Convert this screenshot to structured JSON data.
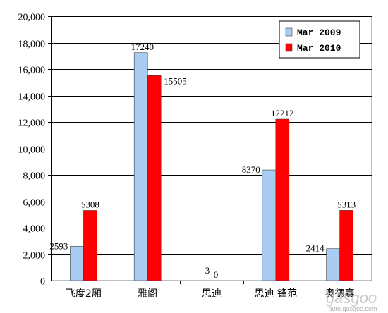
{
  "chart_data": {
    "type": "bar",
    "categories": [
      "飞度2厢",
      "雅阁",
      "思迪",
      "思迪 锋范",
      "奥德赛"
    ],
    "series": [
      {
        "name": "Mar 2009",
        "color": "#a9cdf2",
        "values": [
          2593,
          17240,
          3,
          8370,
          2414
        ]
      },
      {
        "name": "Mar 2010",
        "color": "#ff0000",
        "values": [
          5308,
          15505,
          0,
          12212,
          5313
        ]
      }
    ],
    "data_labels": {
      "Mar 2009": [
        "2593",
        "17240",
        "3",
        "8370",
        "2414"
      ],
      "Mar 2010": [
        "5308",
        "15505",
        "0",
        "12212",
        "5313"
      ]
    },
    "ylim": [
      0,
      20000
    ],
    "yticks": [
      0,
      2000,
      4000,
      6000,
      8000,
      10000,
      12000,
      14000,
      16000,
      18000,
      20000
    ],
    "ytick_labels": [
      "0",
      "2,000",
      "4,000",
      "6,000",
      "8,000",
      "10,000",
      "12,000",
      "14,000",
      "16,000",
      "18,000",
      "20,000"
    ],
    "grid": true,
    "legend_position": "top-right",
    "title": "",
    "xlabel": "",
    "ylabel": ""
  },
  "watermark": {
    "main": "gasgoo",
    "sub": "auto.gasgoo.com"
  }
}
